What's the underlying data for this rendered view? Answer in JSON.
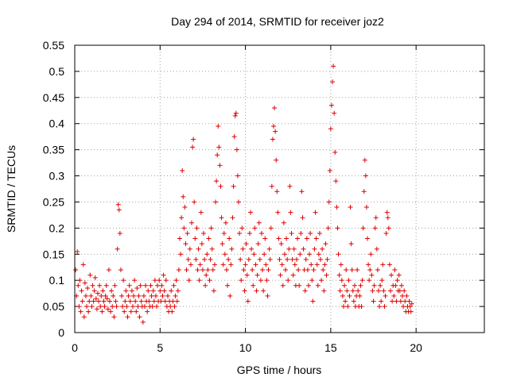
{
  "chart_data": {
    "type": "scatter",
    "title": "Day 294 of 2014, SRMTID for receiver joz2",
    "xlabel": "GPS time / hours",
    "ylabel": "SRMTID / TECUs",
    "xlim": [
      0,
      24
    ],
    "ylim": [
      0,
      0.55
    ],
    "xticks": [
      "0",
      "5",
      "10",
      "15",
      "20"
    ],
    "yticks": [
      "0",
      "0.05",
      "0.1",
      "0.15",
      "0.2",
      "0.25",
      "0.3",
      "0.35",
      "0.4",
      "0.45",
      "0.5",
      "0.55"
    ],
    "grid": true,
    "marker": "+",
    "marker_color": "#e00000",
    "points": [
      [
        0.05,
        0.12
      ],
      [
        0.1,
        0.07
      ],
      [
        0.15,
        0.155
      ],
      [
        0.2,
        0.09
      ],
      [
        0.25,
        0.05
      ],
      [
        0.3,
        0.1
      ],
      [
        0.35,
        0.04
      ],
      [
        0.4,
        0.08
      ],
      [
        0.45,
        0.06
      ],
      [
        0.5,
        0.13
      ],
      [
        0.55,
        0.03
      ],
      [
        0.6,
        0.095
      ],
      [
        0.65,
        0.07
      ],
      [
        0.7,
        0.05
      ],
      [
        0.75,
        0.085
      ],
      [
        0.8,
        0.04
      ],
      [
        0.85,
        0.06
      ],
      [
        0.9,
        0.11
      ],
      [
        0.95,
        0.07
      ],
      [
        1.0,
        0.05
      ],
      [
        1.05,
        0.09
      ],
      [
        1.1,
        0.06
      ],
      [
        1.15,
        0.08
      ],
      [
        1.2,
        0.105
      ],
      [
        1.25,
        0.065
      ],
      [
        1.3,
        0.045
      ],
      [
        1.35,
        0.075
      ],
      [
        1.4,
        0.06
      ],
      [
        1.45,
        0.09
      ],
      [
        1.5,
        0.05
      ],
      [
        1.55,
        0.07
      ],
      [
        1.6,
        0.04
      ],
      [
        1.65,
        0.08
      ],
      [
        1.7,
        0.06
      ],
      [
        1.75,
        0.05
      ],
      [
        1.8,
        0.07
      ],
      [
        1.85,
        0.09
      ],
      [
        1.9,
        0.065
      ],
      [
        1.95,
        0.045
      ],
      [
        2.0,
        0.12
      ],
      [
        2.05,
        0.06
      ],
      [
        2.1,
        0.04
      ],
      [
        2.15,
        0.08
      ],
      [
        2.2,
        0.05
      ],
      [
        2.25,
        0.07
      ],
      [
        2.3,
        0.03
      ],
      [
        2.35,
        0.09
      ],
      [
        2.4,
        0.06
      ],
      [
        2.45,
        0.05
      ],
      [
        2.5,
        0.16
      ],
      [
        2.55,
        0.245
      ],
      [
        2.6,
        0.235
      ],
      [
        2.65,
        0.19
      ],
      [
        2.7,
        0.12
      ],
      [
        2.75,
        0.07
      ],
      [
        2.8,
        0.05
      ],
      [
        2.85,
        0.1
      ],
      [
        2.9,
        0.04
      ],
      [
        2.95,
        0.06
      ],
      [
        3.0,
        0.08
      ],
      [
        3.05,
        0.05
      ],
      [
        3.1,
        0.03
      ],
      [
        3.15,
        0.07
      ],
      [
        3.2,
        0.09
      ],
      [
        3.25,
        0.06
      ],
      [
        3.3,
        0.04
      ],
      [
        3.35,
        0.08
      ],
      [
        3.4,
        0.05
      ],
      [
        3.45,
        0.07
      ],
      [
        3.5,
        0.1
      ],
      [
        3.55,
        0.06
      ],
      [
        3.6,
        0.04
      ],
      [
        3.65,
        0.085
      ],
      [
        3.7,
        0.05
      ],
      [
        3.75,
        0.07
      ],
      [
        3.8,
        0.03
      ],
      [
        3.85,
        0.09
      ],
      [
        3.9,
        0.06
      ],
      [
        3.95,
        0.05
      ],
      [
        4.0,
        0.02
      ],
      [
        4.05,
        0.07
      ],
      [
        4.1,
        0.05
      ],
      [
        4.15,
        0.09
      ],
      [
        4.2,
        0.06
      ],
      [
        4.25,
        0.04
      ],
      [
        4.3,
        0.08
      ],
      [
        4.35,
        0.06
      ],
      [
        4.4,
        0.05
      ],
      [
        4.45,
        0.09
      ],
      [
        4.5,
        0.07
      ],
      [
        4.55,
        0.05
      ],
      [
        4.6,
        0.08
      ],
      [
        4.65,
        0.06
      ],
      [
        4.7,
        0.1
      ],
      [
        4.75,
        0.07
      ],
      [
        4.8,
        0.05
      ],
      [
        4.85,
        0.09
      ],
      [
        4.9,
        0.06
      ],
      [
        4.95,
        0.1
      ],
      [
        5.0,
        0.08
      ],
      [
        5.05,
        0.06
      ],
      [
        5.1,
        0.09
      ],
      [
        5.15,
        0.07
      ],
      [
        5.2,
        0.11
      ],
      [
        5.25,
        0.08
      ],
      [
        5.3,
        0.06
      ],
      [
        5.35,
        0.1
      ],
      [
        5.4,
        0.05
      ],
      [
        5.45,
        0.07
      ],
      [
        5.5,
        0.04
      ],
      [
        5.55,
        0.06
      ],
      [
        5.6,
        0.05
      ],
      [
        5.65,
        0.08
      ],
      [
        5.7,
        0.04
      ],
      [
        5.75,
        0.06
      ],
      [
        5.8,
        0.09
      ],
      [
        5.85,
        0.05
      ],
      [
        5.9,
        0.07
      ],
      [
        5.95,
        0.1
      ],
      [
        6.0,
        0.06
      ],
      [
        6.05,
        0.08
      ],
      [
        6.1,
        0.12
      ],
      [
        6.15,
        0.18
      ],
      [
        6.2,
        0.15
      ],
      [
        6.25,
        0.22
      ],
      [
        6.3,
        0.31
      ],
      [
        6.35,
        0.26
      ],
      [
        6.4,
        0.2
      ],
      [
        6.45,
        0.24
      ],
      [
        6.5,
        0.17
      ],
      [
        6.55,
        0.12
      ],
      [
        6.6,
        0.19
      ],
      [
        6.65,
        0.14
      ],
      [
        6.7,
        0.1
      ],
      [
        6.75,
        0.16
      ],
      [
        6.8,
        0.13
      ],
      [
        6.85,
        0.21
      ],
      [
        6.9,
        0.355
      ],
      [
        6.95,
        0.37
      ],
      [
        7.0,
        0.25
      ],
      [
        7.05,
        0.18
      ],
      [
        7.1,
        0.14
      ],
      [
        7.15,
        0.2
      ],
      [
        7.2,
        0.12
      ],
      [
        7.25,
        0.16
      ],
      [
        7.3,
        0.1
      ],
      [
        7.35,
        0.13
      ],
      [
        7.4,
        0.23
      ],
      [
        7.45,
        0.17
      ],
      [
        7.5,
        0.12
      ],
      [
        7.55,
        0.19
      ],
      [
        7.6,
        0.14
      ],
      [
        7.65,
        0.09
      ],
      [
        7.7,
        0.11
      ],
      [
        7.75,
        0.15
      ],
      [
        7.8,
        0.12
      ],
      [
        7.85,
        0.18
      ],
      [
        7.9,
        0.1
      ],
      [
        7.95,
        0.14
      ],
      [
        8.0,
        0.2
      ],
      [
        8.05,
        0.16
      ],
      [
        8.1,
        0.12
      ],
      [
        8.15,
        0.08
      ],
      [
        8.2,
        0.13
      ],
      [
        8.25,
        0.25
      ],
      [
        8.3,
        0.29
      ],
      [
        8.35,
        0.34
      ],
      [
        8.4,
        0.395
      ],
      [
        8.45,
        0.355
      ],
      [
        8.5,
        0.32
      ],
      [
        8.55,
        0.28
      ],
      [
        8.6,
        0.22
      ],
      [
        8.65,
        0.17
      ],
      [
        8.7,
        0.13
      ],
      [
        8.75,
        0.19
      ],
      [
        8.8,
        0.15
      ],
      [
        8.85,
        0.21
      ],
      [
        8.9,
        0.12
      ],
      [
        8.95,
        0.09
      ],
      [
        9.0,
        0.14
      ],
      [
        9.05,
        0.18
      ],
      [
        9.1,
        0.07
      ],
      [
        9.15,
        0.13
      ],
      [
        9.2,
        0.16
      ],
      [
        9.25,
        0.22
      ],
      [
        9.3,
        0.28
      ],
      [
        9.35,
        0.375
      ],
      [
        9.4,
        0.415
      ],
      [
        9.45,
        0.42
      ],
      [
        9.5,
        0.35
      ],
      [
        9.55,
        0.3
      ],
      [
        9.6,
        0.25
      ],
      [
        9.65,
        0.19
      ],
      [
        9.7,
        0.14
      ],
      [
        9.75,
        0.1
      ],
      [
        9.8,
        0.2
      ],
      [
        9.85,
        0.16
      ],
      [
        9.9,
        0.12
      ],
      [
        9.95,
        0.08
      ],
      [
        10.0,
        0.13
      ],
      [
        10.05,
        0.17
      ],
      [
        10.1,
        0.11
      ],
      [
        10.15,
        0.06
      ],
      [
        10.2,
        0.14
      ],
      [
        10.25,
        0.19
      ],
      [
        10.3,
        0.23
      ],
      [
        10.35,
        0.16
      ],
      [
        10.4,
        0.12
      ],
      [
        10.45,
        0.09
      ],
      [
        10.5,
        0.15
      ],
      [
        10.55,
        0.2
      ],
      [
        10.6,
        0.13
      ],
      [
        10.65,
        0.08
      ],
      [
        10.7,
        0.11
      ],
      [
        10.75,
        0.17
      ],
      [
        10.8,
        0.21
      ],
      [
        10.85,
        0.14
      ],
      [
        10.9,
        0.1
      ],
      [
        10.95,
        0.19
      ],
      [
        11.0,
        0.12
      ],
      [
        11.05,
        0.08
      ],
      [
        11.1,
        0.15
      ],
      [
        11.15,
        0.18
      ],
      [
        11.2,
        0.13
      ],
      [
        11.25,
        0.1
      ],
      [
        11.3,
        0.07
      ],
      [
        11.35,
        0.12
      ],
      [
        11.4,
        0.16
      ],
      [
        11.45,
        0.14
      ],
      [
        11.5,
        0.2
      ],
      [
        11.55,
        0.28
      ],
      [
        11.6,
        0.37
      ],
      [
        11.65,
        0.395
      ],
      [
        11.7,
        0.43
      ],
      [
        11.75,
        0.385
      ],
      [
        11.8,
        0.33
      ],
      [
        11.85,
        0.27
      ],
      [
        11.9,
        0.23
      ],
      [
        11.95,
        0.18
      ],
      [
        12.0,
        0.14
      ],
      [
        12.05,
        0.11
      ],
      [
        12.1,
        0.17
      ],
      [
        12.15,
        0.13
      ],
      [
        12.2,
        0.09
      ],
      [
        12.25,
        0.21
      ],
      [
        12.3,
        0.15
      ],
      [
        12.35,
        0.12
      ],
      [
        12.4,
        0.18
      ],
      [
        12.45,
        0.14
      ],
      [
        12.5,
        0.1
      ],
      [
        12.55,
        0.16
      ],
      [
        12.6,
        0.28
      ],
      [
        12.65,
        0.23
      ],
      [
        12.7,
        0.19
      ],
      [
        12.75,
        0.14
      ],
      [
        12.8,
        0.11
      ],
      [
        12.85,
        0.16
      ],
      [
        12.9,
        0.13
      ],
      [
        12.95,
        0.09
      ],
      [
        13.0,
        0.14
      ],
      [
        13.05,
        0.18
      ],
      [
        13.1,
        0.12
      ],
      [
        13.15,
        0.09
      ],
      [
        13.2,
        0.15
      ],
      [
        13.25,
        0.19
      ],
      [
        13.3,
        0.27
      ],
      [
        13.35,
        0.22
      ],
      [
        13.4,
        0.16
      ],
      [
        13.45,
        0.12
      ],
      [
        13.5,
        0.08
      ],
      [
        13.55,
        0.14
      ],
      [
        13.6,
        0.18
      ],
      [
        13.65,
        0.12
      ],
      [
        13.7,
        0.09
      ],
      [
        13.75,
        0.15
      ],
      [
        13.8,
        0.19
      ],
      [
        13.85,
        0.13
      ],
      [
        13.9,
        0.1
      ],
      [
        13.95,
        0.06
      ],
      [
        14.0,
        0.12
      ],
      [
        14.05,
        0.16
      ],
      [
        14.1,
        0.23
      ],
      [
        14.15,
        0.18
      ],
      [
        14.2,
        0.13
      ],
      [
        14.25,
        0.09
      ],
      [
        14.3,
        0.15
      ],
      [
        14.35,
        0.19
      ],
      [
        14.4,
        0.14
      ],
      [
        14.45,
        0.1
      ],
      [
        14.5,
        0.16
      ],
      [
        14.55,
        0.12
      ],
      [
        14.6,
        0.08
      ],
      [
        14.65,
        0.13
      ],
      [
        14.7,
        0.17
      ],
      [
        14.75,
        0.11
      ],
      [
        14.8,
        0.14
      ],
      [
        14.85,
        0.2
      ],
      [
        14.9,
        0.25
      ],
      [
        14.95,
        0.31
      ],
      [
        15.0,
        0.39
      ],
      [
        15.05,
        0.435
      ],
      [
        15.1,
        0.48
      ],
      [
        15.15,
        0.51
      ],
      [
        15.2,
        0.42
      ],
      [
        15.25,
        0.345
      ],
      [
        15.3,
        0.29
      ],
      [
        15.35,
        0.24
      ],
      [
        15.4,
        0.2
      ],
      [
        15.45,
        0.15
      ],
      [
        15.5,
        0.11
      ],
      [
        15.55,
        0.08
      ],
      [
        15.6,
        0.13
      ],
      [
        15.65,
        0.1
      ],
      [
        15.7,
        0.07
      ],
      [
        15.75,
        0.05
      ],
      [
        15.8,
        0.09
      ],
      [
        15.85,
        0.06
      ],
      [
        15.9,
        0.12
      ],
      [
        15.95,
        0.08
      ],
      [
        16.0,
        0.05
      ],
      [
        16.05,
        0.1
      ],
      [
        16.1,
        0.07
      ],
      [
        16.15,
        0.24
      ],
      [
        16.2,
        0.17
      ],
      [
        16.25,
        0.12
      ],
      [
        16.3,
        0.08
      ],
      [
        16.35,
        0.06
      ],
      [
        16.4,
        0.09
      ],
      [
        16.45,
        0.05
      ],
      [
        16.5,
        0.07
      ],
      [
        16.55,
        0.12
      ],
      [
        16.6,
        0.08
      ],
      [
        16.65,
        0.05
      ],
      [
        16.7,
        0.07
      ],
      [
        16.75,
        0.09
      ],
      [
        16.8,
        0.05
      ],
      [
        16.85,
        0.1
      ],
      [
        16.9,
        0.2
      ],
      [
        16.95,
        0.27
      ],
      [
        17.0,
        0.33
      ],
      [
        17.05,
        0.3
      ],
      [
        17.1,
        0.24
      ],
      [
        17.15,
        0.18
      ],
      [
        17.2,
        0.13
      ],
      [
        17.25,
        0.1
      ],
      [
        17.3,
        0.12
      ],
      [
        17.35,
        0.15
      ],
      [
        17.4,
        0.11
      ],
      [
        17.45,
        0.08
      ],
      [
        17.5,
        0.06
      ],
      [
        17.55,
        0.09
      ],
      [
        17.6,
        0.2
      ],
      [
        17.65,
        0.22
      ],
      [
        17.7,
        0.16
      ],
      [
        17.75,
        0.12
      ],
      [
        17.8,
        0.08
      ],
      [
        17.85,
        0.05
      ],
      [
        17.9,
        0.09
      ],
      [
        17.95,
        0.06
      ],
      [
        18.0,
        0.1
      ],
      [
        18.05,
        0.13
      ],
      [
        18.1,
        0.08
      ],
      [
        18.15,
        0.05
      ],
      [
        18.2,
        0.07
      ],
      [
        18.25,
        0.19
      ],
      [
        18.3,
        0.23
      ],
      [
        18.35,
        0.22
      ],
      [
        18.4,
        0.2
      ],
      [
        18.45,
        0.13
      ],
      [
        18.5,
        0.08
      ],
      [
        18.55,
        0.11
      ],
      [
        18.6,
        0.06
      ],
      [
        18.65,
        0.09
      ],
      [
        18.7,
        0.07
      ],
      [
        18.75,
        0.12
      ],
      [
        18.8,
        0.09
      ],
      [
        18.85,
        0.06
      ],
      [
        18.9,
        0.1
      ],
      [
        18.95,
        0.08
      ],
      [
        19.0,
        0.11
      ],
      [
        19.05,
        0.08
      ],
      [
        19.1,
        0.06
      ],
      [
        19.15,
        0.09
      ],
      [
        19.2,
        0.07
      ],
      [
        19.25,
        0.05
      ],
      [
        19.3,
        0.08
      ],
      [
        19.35,
        0.06
      ],
      [
        19.4,
        0.04
      ],
      [
        19.45,
        0.07
      ],
      [
        19.5,
        0.05
      ],
      [
        19.55,
        0.04
      ],
      [
        19.6,
        0.06
      ],
      [
        19.65,
        0.05
      ],
      [
        19.7,
        0.04
      ],
      [
        19.75,
        0.055
      ]
    ]
  }
}
